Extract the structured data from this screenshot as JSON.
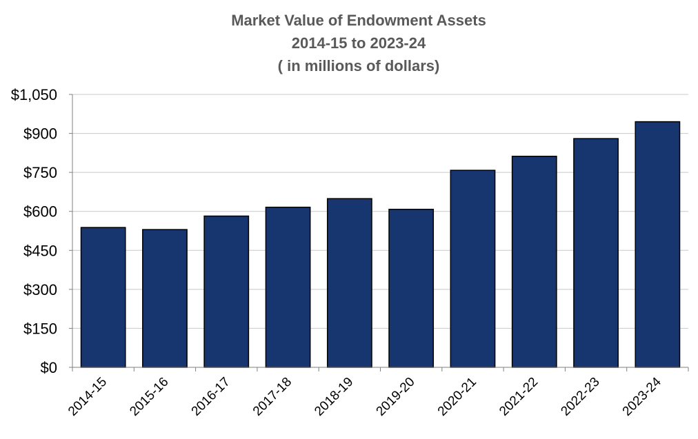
{
  "chart_data": {
    "type": "bar",
    "title_lines": [
      "Market Value of Endowment Assets",
      "2014-15  to 2023-24",
      "( in millions of dollars)"
    ],
    "categories": [
      "2014-15",
      "2015-16",
      "2016-17",
      "2017-18",
      "2018-19",
      "2019-20",
      "2020-21",
      "2021-22",
      "2022-23",
      "2023-24"
    ],
    "values": [
      538,
      530,
      582,
      616,
      649,
      608,
      758,
      812,
      880,
      945
    ],
    "ylim": [
      0,
      1050
    ],
    "yticks": [
      0,
      150,
      300,
      450,
      600,
      750,
      900,
      1050
    ],
    "ytick_labels": [
      "$0",
      "$150",
      "$300",
      "$450",
      "$600",
      "$750",
      "$900",
      "$1,050"
    ],
    "xlabel": "",
    "ylabel": "",
    "grid": true,
    "bar_color": "#17356e"
  }
}
